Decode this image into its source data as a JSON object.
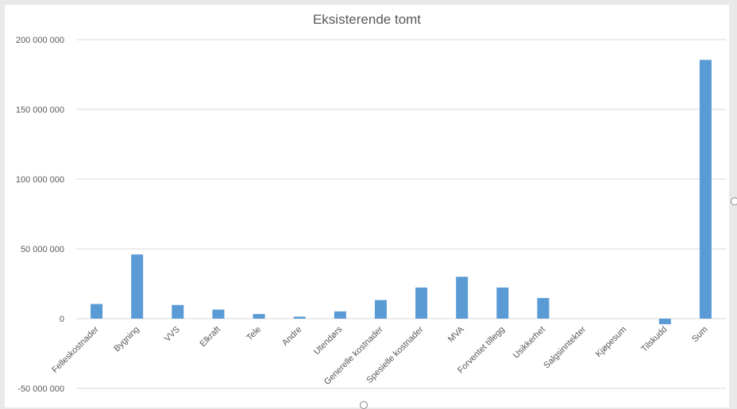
{
  "chart_data": {
    "type": "bar",
    "title": "Eksisterende tomt",
    "xlabel": "",
    "ylabel": "",
    "categories": [
      "Felleskostnader",
      "Bygning",
      "VVS",
      "Elkraft",
      "Tele",
      "Andre",
      "Utendørs",
      "Generelle kostnader",
      "Spesielle kostnader",
      "MVA",
      "Forventet tillegg",
      "Usikkerhet",
      "Salgsinntekter",
      "Kjøpesum",
      "Tilskudd",
      "Sum"
    ],
    "values": [
      10500000,
      46000000,
      9800000,
      6500000,
      3300000,
      1400000,
      5200000,
      13300000,
      22300000,
      30000000,
      22300000,
      14800000,
      0,
      0,
      -4000000,
      185500000
    ],
    "ylim": [
      -50000000,
      200000000
    ],
    "yticks": [
      -50000000,
      0,
      50000000,
      100000000,
      150000000,
      200000000
    ],
    "ytick_labels": [
      "-50 000 000",
      "0",
      "50 000 000",
      "100 000 000",
      "150 000 000",
      "200 000 000"
    ],
    "grid": true,
    "bar_color": "#5b9bd5",
    "grid_color": "#d9d9d9"
  }
}
